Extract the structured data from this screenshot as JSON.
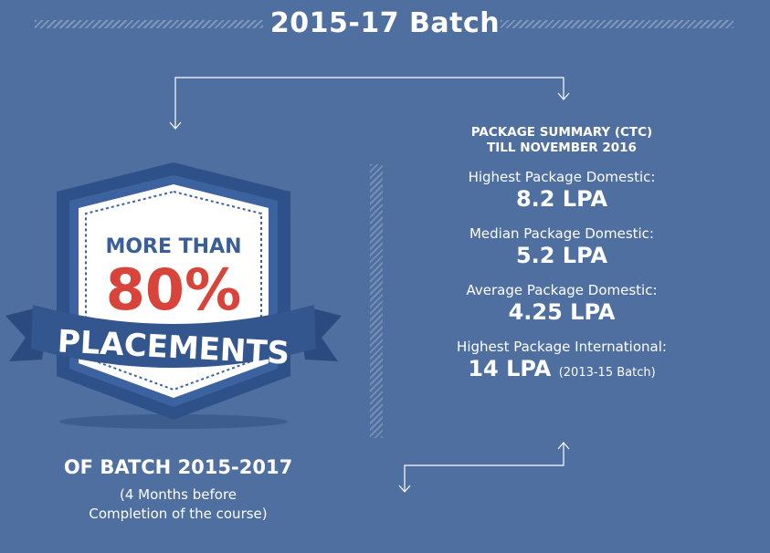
{
  "header": {
    "title": "2015-17 Batch"
  },
  "badge": {
    "line1": "MORE THAN",
    "percent": "80%",
    "ribbon": "PLACEMENTS"
  },
  "batch": {
    "title": "OF BATCH 2015-2017",
    "note_line1": "(4 Months before",
    "note_line2": "Completion of the course)"
  },
  "summary": {
    "heading_line1": "PACKAGE SUMMARY (CTC)",
    "heading_line2": "TILL NOVEMBER 2016",
    "packages": [
      {
        "label": "Highest Package Domestic:",
        "value": "8.2 LPA",
        "sub": ""
      },
      {
        "label": "Median Package Domestic:",
        "value": "5.2 LPA",
        "sub": ""
      },
      {
        "label": "Average Package Domestic:",
        "value": "4.25 LPA",
        "sub": ""
      },
      {
        "label": "Highest Package International:",
        "value": "14 LPA",
        "sub": "(2013-15 Batch)"
      }
    ]
  },
  "colors": {
    "background": "#4e6fa0",
    "badge_dark": "#2f5189",
    "badge_mid": "#3c63a0",
    "badge_face": "#ffffff",
    "percent_red": "#d9443a",
    "text_blue": "#3a5e98"
  }
}
